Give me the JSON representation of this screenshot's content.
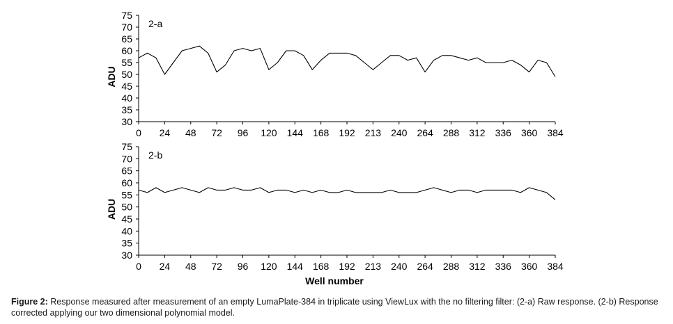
{
  "chart_data": [
    {
      "type": "line",
      "panel_label": "2-a",
      "ylabel": "ADU",
      "xlabel": "",
      "ylim": [
        30,
        75
      ],
      "yticks": [
        30,
        35,
        40,
        45,
        50,
        55,
        60,
        65,
        70,
        75
      ],
      "xlim": [
        0,
        384
      ],
      "xticks": [
        "0",
        "24",
        "48",
        "72",
        "96",
        "120",
        "144",
        "168",
        "192",
        "213",
        "240",
        "264",
        "288",
        "312",
        "336",
        "360",
        "384"
      ],
      "grid": false,
      "x": [
        0,
        8,
        16,
        24,
        32,
        40,
        48,
        56,
        64,
        72,
        80,
        88,
        96,
        104,
        112,
        120,
        128,
        136,
        144,
        152,
        160,
        168,
        176,
        184,
        192,
        200,
        208,
        216,
        224,
        232,
        240,
        248,
        256,
        264,
        272,
        280,
        288,
        296,
        304,
        312,
        320,
        328,
        336,
        344,
        352,
        360,
        368,
        376,
        384
      ],
      "values": [
        57,
        59,
        57,
        50,
        55,
        60,
        61,
        62,
        59,
        51,
        54,
        60,
        61,
        60,
        61,
        52,
        55,
        60,
        60,
        58,
        52,
        56,
        59,
        59,
        59,
        58,
        55,
        52,
        55,
        58,
        58,
        56,
        57,
        51,
        56,
        58,
        58,
        57,
        56,
        57,
        55,
        55,
        55,
        56,
        54,
        51,
        56,
        55,
        49
      ]
    },
    {
      "type": "line",
      "panel_label": "2-b",
      "ylabel": "ADU",
      "xlabel": "Well number",
      "ylim": [
        30,
        75
      ],
      "yticks": [
        30,
        35,
        40,
        45,
        50,
        55,
        60,
        65,
        70,
        75
      ],
      "xlim": [
        0,
        384
      ],
      "xticks": [
        "0",
        "24",
        "48",
        "72",
        "96",
        "120",
        "144",
        "168",
        "192",
        "213",
        "240",
        "264",
        "288",
        "312",
        "336",
        "360",
        "384"
      ],
      "grid": false,
      "x": [
        0,
        8,
        16,
        24,
        32,
        40,
        48,
        56,
        64,
        72,
        80,
        88,
        96,
        104,
        112,
        120,
        128,
        136,
        144,
        152,
        160,
        168,
        176,
        184,
        192,
        200,
        208,
        216,
        224,
        232,
        240,
        248,
        256,
        264,
        272,
        280,
        288,
        296,
        304,
        312,
        320,
        328,
        336,
        344,
        352,
        360,
        368,
        376,
        384
      ],
      "values": [
        57,
        56,
        58,
        56,
        57,
        58,
        57,
        56,
        58,
        57,
        57,
        58,
        57,
        57,
        58,
        56,
        57,
        57,
        56,
        57,
        56,
        57,
        56,
        56,
        57,
        56,
        56,
        56,
        56,
        57,
        56,
        56,
        56,
        57,
        58,
        57,
        56,
        57,
        57,
        56,
        57,
        57,
        57,
        57,
        56,
        58,
        57,
        56,
        53
      ]
    }
  ],
  "caption": {
    "prefix": "Figure 2:",
    "text": " Response measured after measurement of an empty LumaPlate-384 in triplicate using ViewLux with the no filtering filter: (2-a) Raw response. (2-b) Response corrected applying our two dimensional polynomial model."
  }
}
